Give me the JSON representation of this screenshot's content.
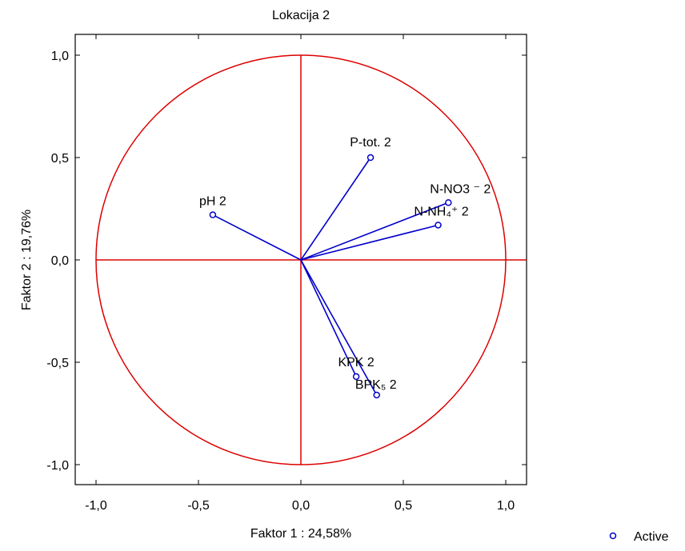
{
  "chart_data": {
    "type": "scatter",
    "title": "Lokacija 2",
    "xlabel": "Faktor 1 : 24,58%",
    "ylabel": "Faktor 2 : 19,76%",
    "xlim": [
      -1.1,
      1.1
    ],
    "ylim": [
      -1.1,
      1.1
    ],
    "x_ticks": [
      {
        "value": -1.0,
        "label": "-1,0"
      },
      {
        "value": -0.5,
        "label": "-0,5"
      },
      {
        "value": 0.0,
        "label": "0,0"
      },
      {
        "value": 0.5,
        "label": "0,5"
      },
      {
        "value": 1.0,
        "label": "1,0"
      }
    ],
    "y_ticks": [
      {
        "value": 1.0,
        "label": "1,0"
      },
      {
        "value": 0.5,
        "label": "0,5"
      },
      {
        "value": 0.0,
        "label": "0,0"
      },
      {
        "value": -0.5,
        "label": "-0,5"
      },
      {
        "value": -1.0,
        "label": "-1,0"
      }
    ],
    "grid": false,
    "unit_circle": true,
    "legend": {
      "position": "bottom-right",
      "entries": [
        "Active"
      ]
    },
    "series": [
      {
        "name": "Active",
        "color": "#0000cc",
        "points": [
          {
            "label": "P-tot. 2",
            "x": 0.34,
            "y": 0.5
          },
          {
            "label": "pH 2",
            "x": -0.43,
            "y": 0.22
          },
          {
            "label": "N-NO3 ⁻ 2",
            "x": 0.72,
            "y": 0.28
          },
          {
            "label": "N-NH₄⁺ 2",
            "x": 0.67,
            "y": 0.17
          },
          {
            "label": "KPK 2",
            "x": 0.27,
            "y": -0.57
          },
          {
            "label": "BPK₅ 2",
            "x": 0.37,
            "y": -0.66
          }
        ]
      }
    ],
    "colors": {
      "circle": "#dd0000",
      "axes_lines": "#dd0000",
      "vectors": "#0000cc",
      "frame": "#000000"
    }
  }
}
